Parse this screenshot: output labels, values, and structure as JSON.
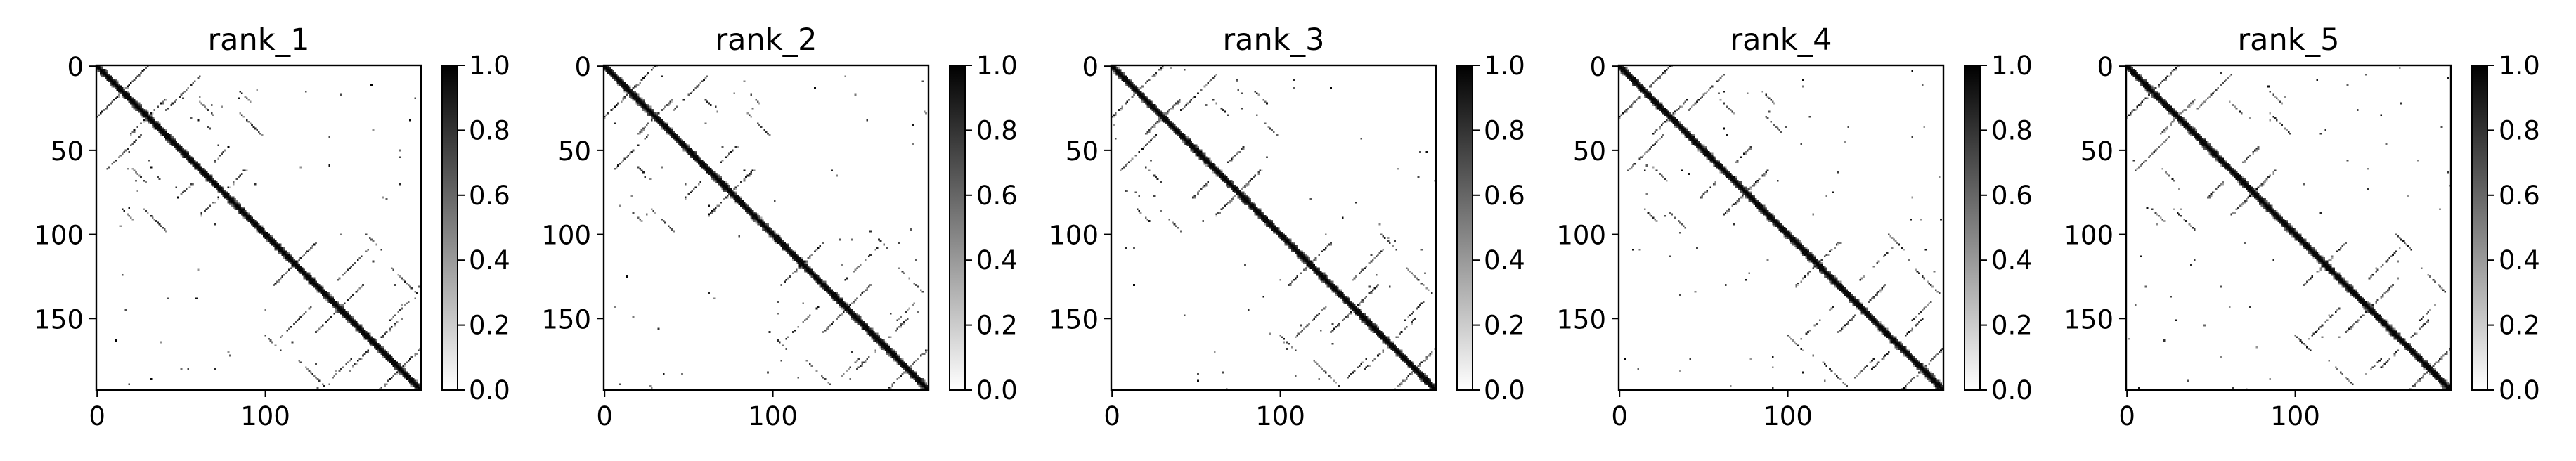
{
  "chart_data": {
    "type": "heatmap",
    "description_note": "",
    "shared": {
      "size": 193,
      "x_ticks": [
        0,
        100
      ],
      "y_ticks": [
        0,
        50,
        100,
        150
      ],
      "x_tick_labels": [
        "0",
        "100"
      ],
      "y_tick_labels": [
        "0",
        "50",
        "100",
        "150"
      ],
      "colorbar_ticks": [
        0.0,
        0.2,
        0.4,
        0.6,
        0.8,
        1.0
      ],
      "colorbar_tick_labels": [
        "0.0",
        "0.2",
        "0.4",
        "0.6",
        "0.8",
        "1.0"
      ],
      "colorbar_range": [
        0.0,
        1.0
      ],
      "colormap": "Greys",
      "colors": {
        "low": "#ffffff",
        "high": "#000000"
      }
    },
    "panels": [
      {
        "title": "rank_1",
        "seed": 11
      },
      {
        "title": "rank_2",
        "seed": 23
      },
      {
        "title": "rank_3",
        "seed": 37
      },
      {
        "title": "rank_4",
        "seed": 41
      },
      {
        "title": "rank_5",
        "seed": 59
      }
    ]
  }
}
